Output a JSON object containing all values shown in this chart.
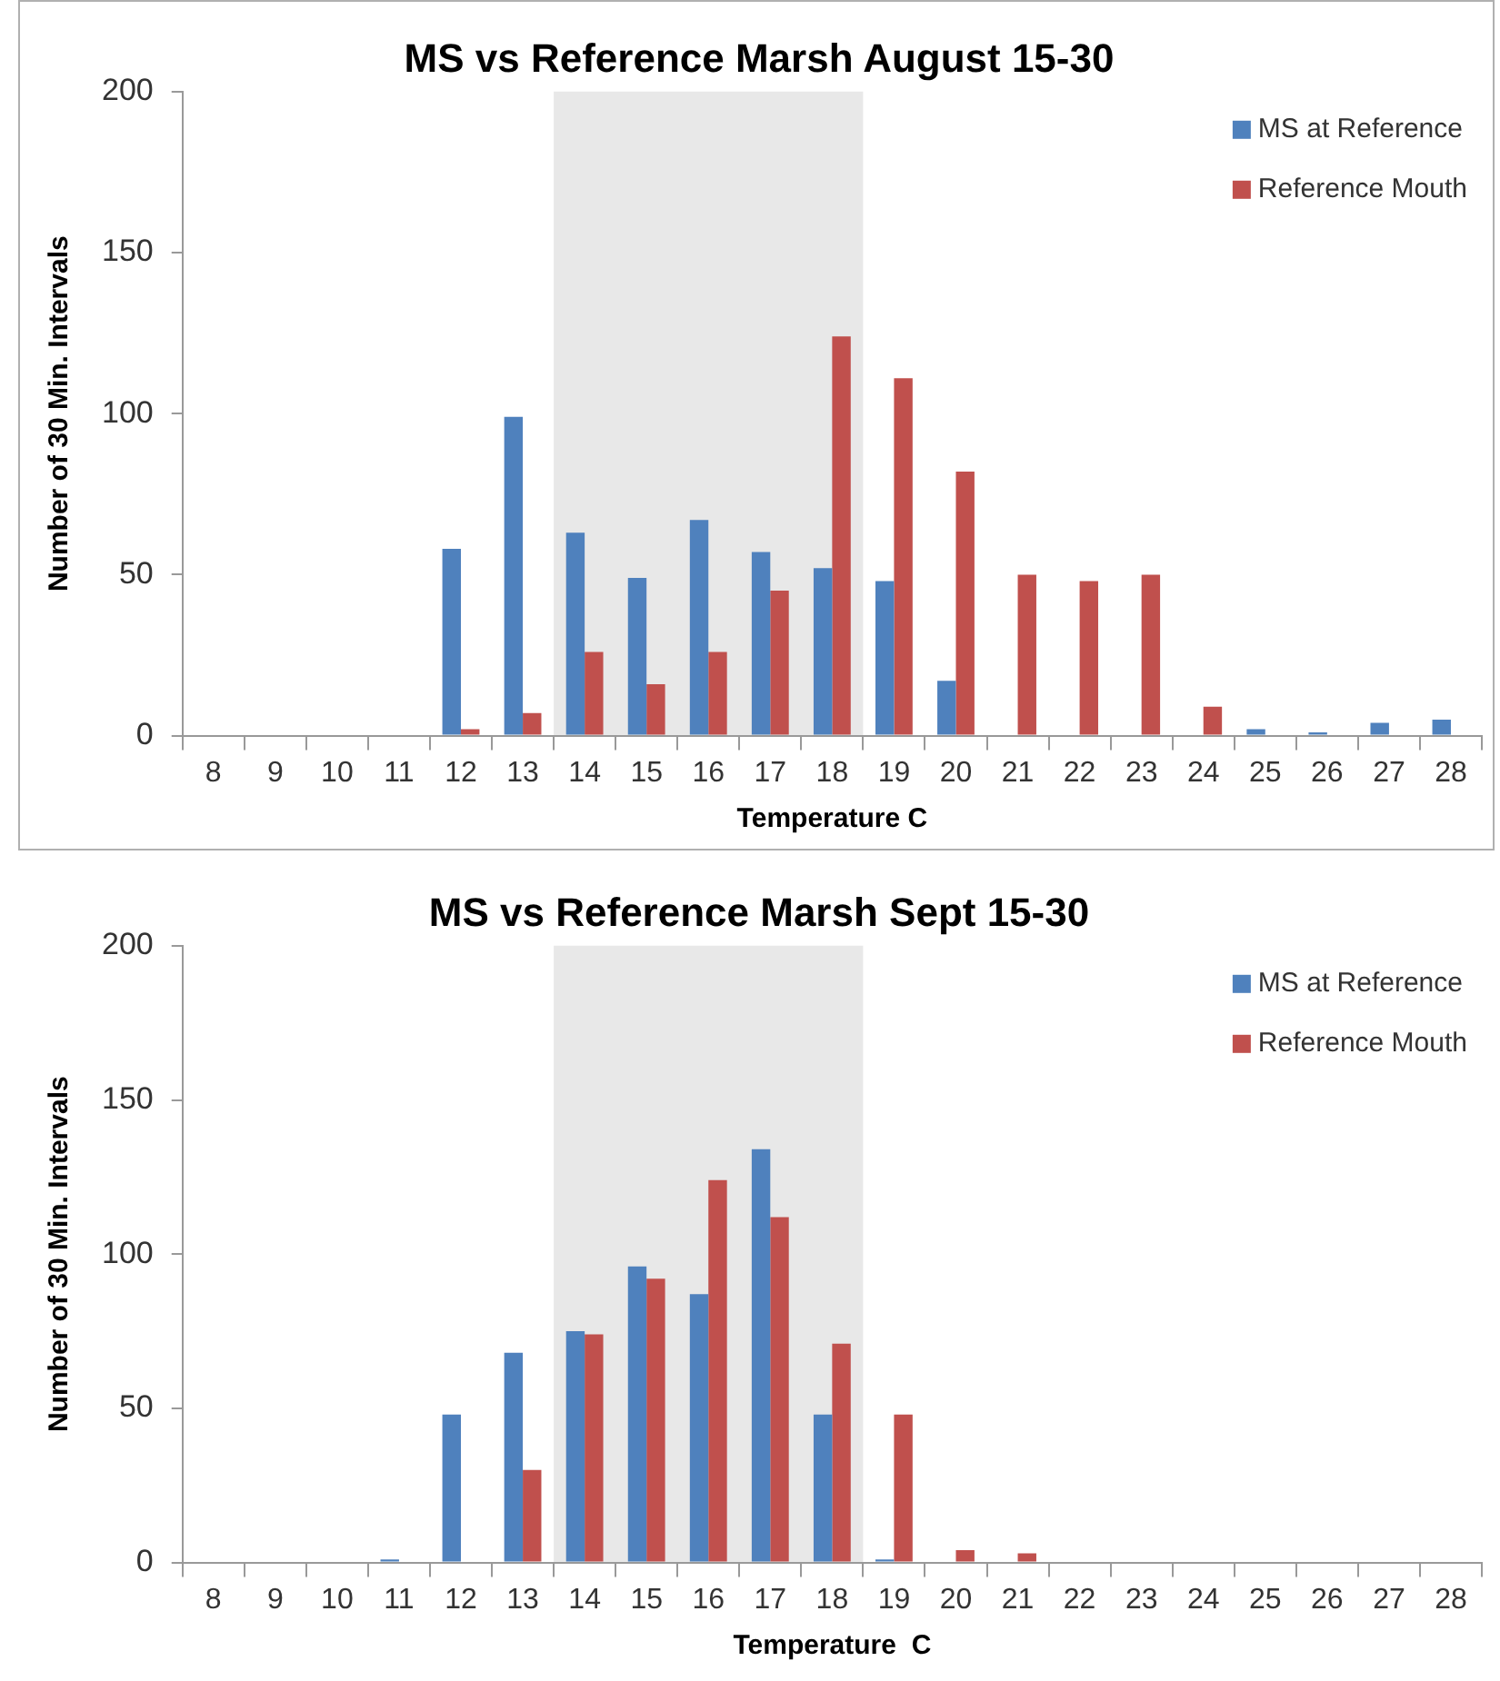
{
  "chart_data": [
    {
      "type": "bar",
      "title": "MS vs Reference Marsh August 15-30",
      "xlabel": "Temperature C",
      "ylabel": "Number of 30 Min. Intervals",
      "categories": [
        "8",
        "9",
        "10",
        "11",
        "12",
        "13",
        "14",
        "15",
        "16",
        "17",
        "18",
        "19",
        "20",
        "21",
        "22",
        "23",
        "24",
        "25",
        "26",
        "27",
        "28"
      ],
      "ylim": [
        0,
        200
      ],
      "yticks": [
        0,
        50,
        100,
        150,
        200
      ],
      "grid": false,
      "legend": "top right",
      "bands": [
        {
          "axis": "x",
          "from": "14",
          "to": "18",
          "color": "#e8e8e8"
        }
      ],
      "series": [
        {
          "name": "MS at Reference",
          "color": "#4f81bd",
          "values": [
            0,
            0,
            0,
            0,
            58,
            99,
            63,
            49,
            67,
            57,
            52,
            48,
            17,
            0,
            0,
            0,
            0,
            2,
            1,
            4,
            5
          ]
        },
        {
          "name": "Reference Mouth",
          "color": "#c0504d",
          "values": [
            0,
            0,
            0,
            0,
            2,
            7,
            26,
            16,
            26,
            45,
            124,
            111,
            82,
            50,
            48,
            50,
            9,
            0,
            0,
            0,
            0
          ]
        }
      ]
    },
    {
      "type": "bar",
      "title": "MS vs Reference Marsh Sept 15-30",
      "xlabel": "Temperature  C",
      "ylabel": "Number of 30 Min. Intervals",
      "categories": [
        "8",
        "9",
        "10",
        "11",
        "12",
        "13",
        "14",
        "15",
        "16",
        "17",
        "18",
        "19",
        "20",
        "21",
        "22",
        "23",
        "24",
        "25",
        "26",
        "27",
        "28"
      ],
      "ylim": [
        0,
        200
      ],
      "yticks": [
        0,
        50,
        100,
        150,
        200
      ],
      "grid": false,
      "legend": "top right",
      "bands": [
        {
          "axis": "x",
          "from": "14",
          "to": "18",
          "color": "#e8e8e8"
        }
      ],
      "series": [
        {
          "name": "MS at Reference",
          "color": "#4f81bd",
          "values": [
            0,
            0,
            0,
            1,
            48,
            68,
            75,
            96,
            87,
            134,
            48,
            1,
            0,
            0,
            0,
            0,
            0,
            0,
            0,
            0,
            0
          ]
        },
        {
          "name": "Reference Mouth",
          "color": "#c0504d",
          "values": [
            0,
            0,
            0,
            0,
            0,
            30,
            74,
            92,
            124,
            112,
            71,
            48,
            4,
            3,
            0,
            0,
            0,
            0,
            0,
            0,
            0
          ]
        }
      ]
    }
  ]
}
